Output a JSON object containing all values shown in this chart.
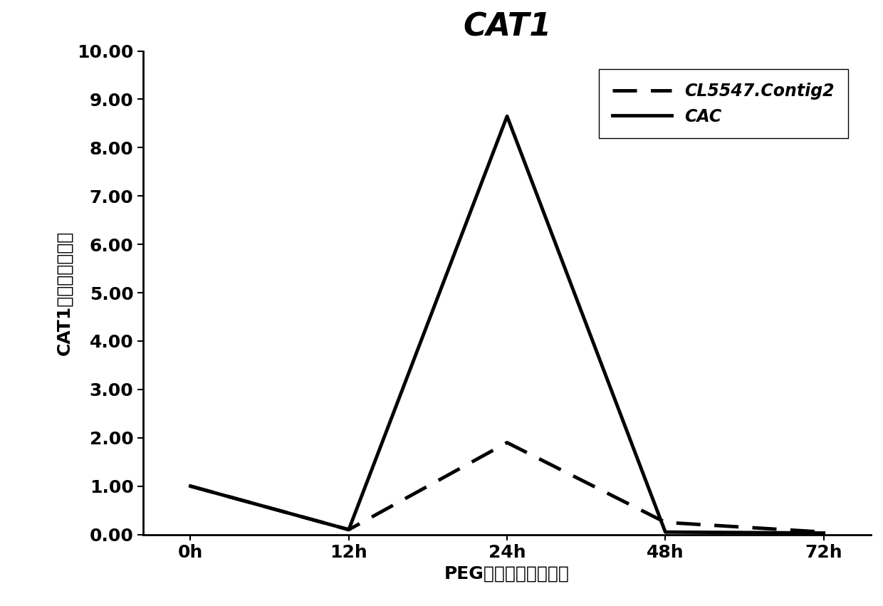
{
  "title": "CAT1",
  "xlabel": "PEG叶片处理后的时间",
  "ylabel": "CAT1基因相对表达量",
  "x_labels": [
    "0h",
    "12h",
    "24h",
    "48h",
    "72h"
  ],
  "x_values": [
    0,
    1,
    2,
    3,
    4
  ],
  "series": [
    {
      "name": "CL5547.Contig2",
      "y_values": [
        1.0,
        0.1,
        1.9,
        0.25,
        0.05
      ],
      "linestyle": "dashed",
      "linewidth": 3.5,
      "color": "#000000"
    },
    {
      "name": "CAC",
      "y_values": [
        1.0,
        0.1,
        8.65,
        0.05,
        0.03
      ],
      "linestyle": "solid",
      "linewidth": 3.5,
      "color": "#000000"
    }
  ],
  "ylim": [
    0.0,
    10.0
  ],
  "yticks": [
    0.0,
    1.0,
    2.0,
    3.0,
    4.0,
    5.0,
    6.0,
    7.0,
    8.0,
    9.0,
    10.0
  ],
  "ytick_labels": [
    "0.00",
    "1.00",
    "2.00",
    "3.00",
    "4.00",
    "5.00",
    "6.00",
    "7.00",
    "8.00",
    "9.00",
    "10.00"
  ],
  "background_color": "#ffffff",
  "title_fontsize": 32,
  "axis_label_fontsize": 18,
  "tick_fontsize": 18,
  "legend_fontsize": 17
}
